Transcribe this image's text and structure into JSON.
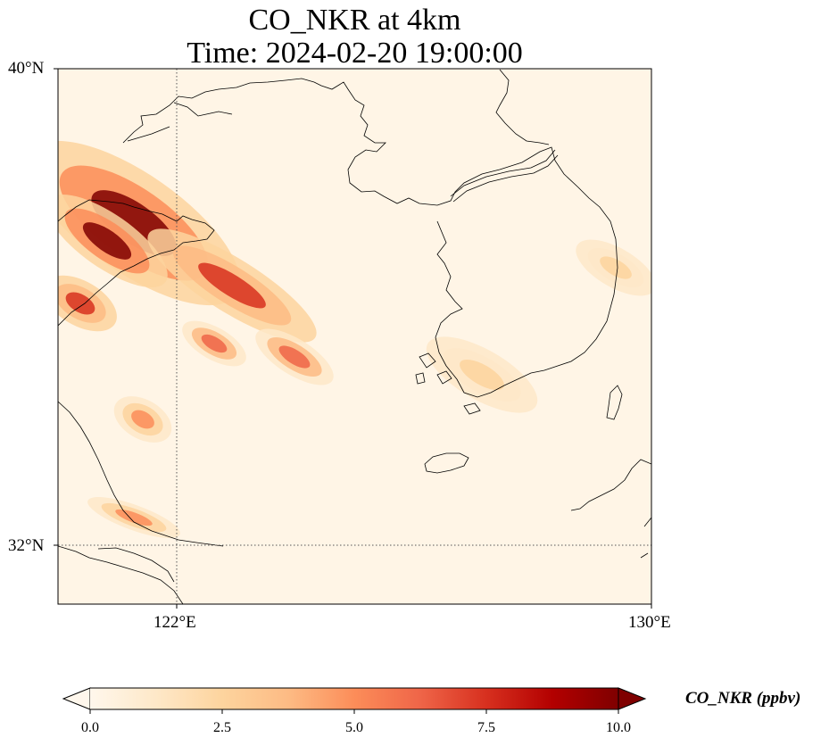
{
  "title_line1": "CO_NKR at 4km",
  "title_line2": "Time: 2024-02-20 19:00:00",
  "axes": {
    "lat_ticks": [
      "40°N",
      "32°N"
    ],
    "lon_ticks": [
      "122°E",
      "130°E"
    ]
  },
  "colorbar": {
    "label": "CO_NKR (ppbv)",
    "ticks": [
      "0.0",
      "2.5",
      "5.0",
      "7.5",
      "10.0"
    ],
    "min": 0,
    "max": 10,
    "extend": "both",
    "colormap": "OrRd",
    "colors": [
      "#fff7ec",
      "#fee8c8",
      "#fdd49e",
      "#fdbb84",
      "#fc8d59",
      "#ef6548",
      "#d7301f",
      "#b30000",
      "#7f0000"
    ]
  },
  "map": {
    "projection": "PlateCarree",
    "lon_range": [
      120,
      130
    ],
    "lat_range": [
      31,
      40
    ],
    "gridlines": "dotted at 122°E and 32°N",
    "coastlines": true,
    "field_peak_regions": [
      {
        "name": "northwest plume",
        "value": 10.0
      },
      {
        "name": "Bohai/Shandong band",
        "value": 7.5
      },
      {
        "name": "Yellow Sea patches",
        "value": 6.5
      },
      {
        "name": "southwest coast Korea",
        "value": 3.0
      },
      {
        "name": "Yangtze area",
        "value": 5.0
      }
    ]
  }
}
